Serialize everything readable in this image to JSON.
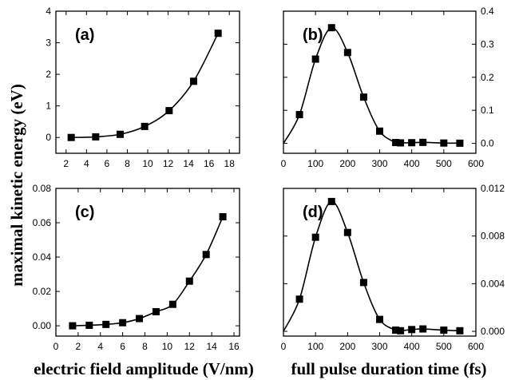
{
  "figure": {
    "ylabel": "maximal kinetic energy (eV)",
    "xlabel_left": "electric field amplitude (V/nm)",
    "xlabel_right": "full pulse duration time (fs)"
  },
  "chart_data": [
    {
      "id": "a",
      "type": "scatter",
      "panel_label": "(a)",
      "y_axis_side": "left",
      "xlim": [
        1,
        19
      ],
      "ylim": [
        -0.5,
        4
      ],
      "xticks": [
        2,
        4,
        6,
        8,
        10,
        12,
        14,
        16,
        18
      ],
      "yticks": [
        0,
        1,
        2,
        3,
        4
      ],
      "ytick_labels": [
        "0",
        "1",
        "2",
        "3",
        "4"
      ],
      "series": [
        {
          "marker": "square",
          "line": "smooth-fit",
          "x": [
            2.5,
            4.9,
            7.3,
            9.7,
            12.1,
            14.5,
            16.9
          ],
          "y": [
            0.0,
            0.02,
            0.1,
            0.35,
            0.85,
            1.78,
            3.3
          ]
        }
      ]
    },
    {
      "id": "b",
      "type": "scatter",
      "panel_label": "(b)",
      "y_axis_side": "right",
      "xlim": [
        0,
        600
      ],
      "ylim": [
        -0.03,
        0.4
      ],
      "xticks": [
        0,
        100,
        200,
        300,
        400,
        500,
        600
      ],
      "yticks": [
        0.0,
        0.1,
        0.2,
        0.3,
        0.4
      ],
      "ytick_labels": [
        "0.0",
        "0.1",
        "0.2",
        "0.3",
        "0.4"
      ],
      "series": [
        {
          "marker": "square",
          "line": "smooth-fit",
          "x": [
            50,
            100,
            150,
            200,
            250,
            300,
            350,
            365,
            400,
            435,
            500,
            550
          ],
          "y": [
            0.087,
            0.255,
            0.35,
            0.275,
            0.14,
            0.037,
            0.0025,
            0.0015,
            0.002,
            0.003,
            0.001,
            0.0005
          ]
        }
      ]
    },
    {
      "id": "c",
      "type": "scatter",
      "panel_label": "(c)",
      "y_axis_side": "left",
      "xlim": [
        0,
        16.5
      ],
      "ylim": [
        -0.006,
        0.08
      ],
      "xticks": [
        0,
        2,
        4,
        6,
        8,
        10,
        12,
        14,
        16
      ],
      "yticks": [
        0.0,
        0.02,
        0.04,
        0.06,
        0.08
      ],
      "ytick_labels": [
        "0.00",
        "0.02",
        "0.04",
        "0.06",
        "0.08"
      ],
      "series": [
        {
          "marker": "square",
          "line": "smooth-fit",
          "x": [
            1.5,
            3.0,
            4.5,
            6.0,
            7.5,
            9.0,
            10.5,
            12.0,
            13.5,
            15.0
          ],
          "y": [
            0.0,
            0.0003,
            0.0008,
            0.0018,
            0.0042,
            0.0082,
            0.0125,
            0.026,
            0.0415,
            0.0635
          ]
        }
      ]
    },
    {
      "id": "d",
      "type": "scatter",
      "panel_label": "(d)",
      "y_axis_side": "right",
      "xlim": [
        0,
        600
      ],
      "ylim": [
        -0.0004,
        0.012
      ],
      "xticks": [
        0,
        100,
        200,
        300,
        400,
        500,
        600
      ],
      "yticks": [
        0.0,
        0.004,
        0.008,
        0.012
      ],
      "ytick_labels": [
        "0.000",
        "0.004",
        "0.008",
        "0.012"
      ],
      "series": [
        {
          "marker": "square",
          "line": "smooth-fit",
          "x": [
            50,
            100,
            150,
            200,
            250,
            300,
            350,
            365,
            400,
            435,
            500,
            550
          ],
          "y": [
            0.0027,
            0.0079,
            0.0109,
            0.0083,
            0.0041,
            0.001,
            0.0001,
            5e-05,
            0.00015,
            0.0002,
            0.0001,
            5e-05
          ]
        }
      ]
    }
  ]
}
